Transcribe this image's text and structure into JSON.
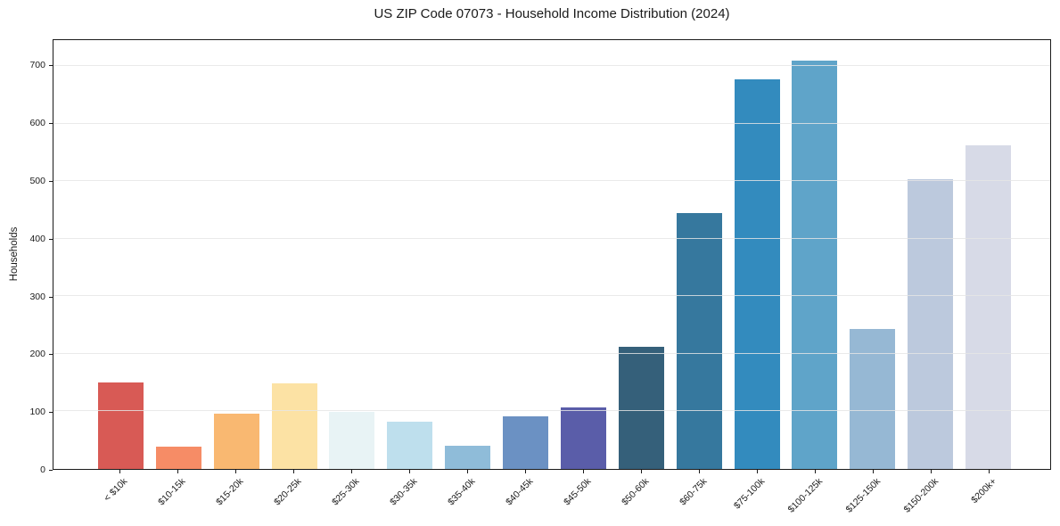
{
  "chart_data": {
    "type": "bar",
    "title": "US ZIP Code 07073 - Household Income Distribution (2024)",
    "xlabel": "",
    "ylabel": "Households",
    "categories": [
      "< $10k",
      "$10-15k",
      "$15-20k",
      "$20-25k",
      "$25-30k",
      "$30-35k",
      "$35-40k",
      "$40-45k",
      "$45-50k",
      "$50-60k",
      "$60-75k",
      "$75-100k",
      "$100-125k",
      "$125-150k",
      "$150-200k",
      "$200k+"
    ],
    "values": [
      150,
      39,
      96,
      148,
      99,
      82,
      40,
      91,
      107,
      212,
      445,
      677,
      710,
      243,
      503,
      562
    ],
    "bar_colors": [
      "#d85a55",
      "#f68c66",
      "#f9b871",
      "#fce2a4",
      "#e8f3f5",
      "#bedfed",
      "#8fbcd9",
      "#6b91c3",
      "#5a5da9",
      "#35607a",
      "#36789e",
      "#338bbe",
      "#5fa4c9",
      "#96b8d4",
      "#bcc9dd",
      "#d7dae7"
    ],
    "yticks": [
      0,
      100,
      200,
      300,
      400,
      500,
      600,
      700
    ],
    "ylim": [
      0,
      745
    ],
    "grid": "horizontal",
    "gridline_color": "#e9e9e9",
    "legend_position": "none",
    "background_color": "#ffffff",
    "spine_color": "#1a1a1a"
  }
}
